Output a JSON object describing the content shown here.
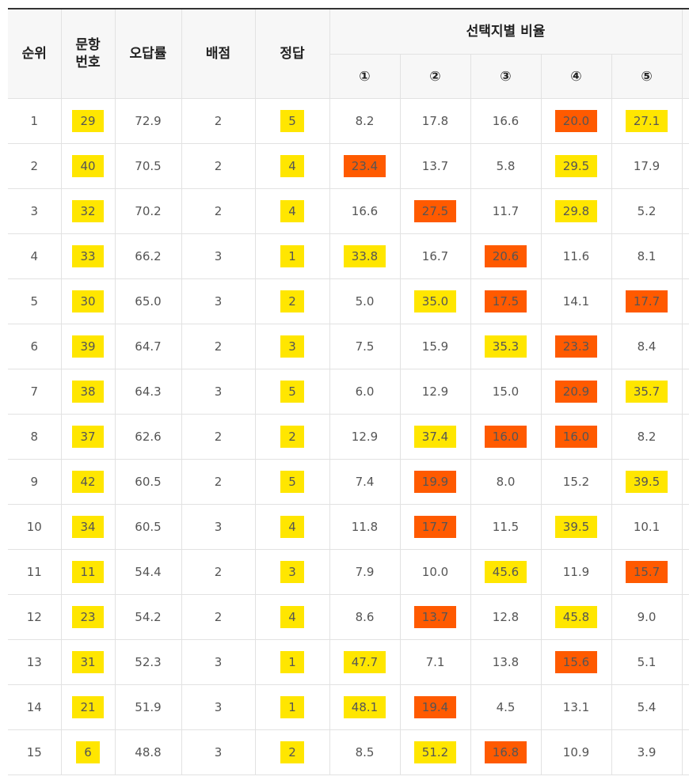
{
  "headers": {
    "rank": "순위",
    "qnum": "문항\n번호",
    "wrong_rate": "오답률",
    "points": "배점",
    "answer": "정답",
    "choice_ratio": "선택지별 비율",
    "choices": [
      "①",
      "②",
      "③",
      "④",
      "⑤"
    ]
  },
  "rows": [
    {
      "rank": "1",
      "qnum": "29",
      "wrong": "72.9",
      "points": "2",
      "answer": "5",
      "c": [
        "8.2",
        "17.8",
        "16.6",
        "20.0",
        "27.1"
      ],
      "orange": 3
    },
    {
      "rank": "2",
      "qnum": "40",
      "wrong": "70.5",
      "points": "2",
      "answer": "4",
      "c": [
        "23.4",
        "13.7",
        "5.8",
        "29.5",
        "17.9"
      ],
      "orange": 0
    },
    {
      "rank": "3",
      "qnum": "32",
      "wrong": "70.2",
      "points": "2",
      "answer": "4",
      "c": [
        "16.6",
        "27.5",
        "11.7",
        "29.8",
        "5.2"
      ],
      "orange": 1
    },
    {
      "rank": "4",
      "qnum": "33",
      "wrong": "66.2",
      "points": "3",
      "answer": "1",
      "c": [
        "33.8",
        "16.7",
        "20.6",
        "11.6",
        "8.1"
      ],
      "orange": 2
    },
    {
      "rank": "5",
      "qnum": "30",
      "wrong": "65.0",
      "points": "3",
      "answer": "2",
      "c": [
        "5.0",
        "35.0",
        "17.5",
        "14.1",
        "17.7"
      ],
      "orange": [
        2,
        4
      ]
    },
    {
      "rank": "6",
      "qnum": "39",
      "wrong": "64.7",
      "points": "2",
      "answer": "3",
      "c": [
        "7.5",
        "15.9",
        "35.3",
        "23.3",
        "8.4"
      ],
      "orange": 3
    },
    {
      "rank": "7",
      "qnum": "38",
      "wrong": "64.3",
      "points": "3",
      "answer": "5",
      "c": [
        "6.0",
        "12.9",
        "15.0",
        "20.9",
        "35.7"
      ],
      "orange": 3
    },
    {
      "rank": "8",
      "qnum": "37",
      "wrong": "62.6",
      "points": "2",
      "answer": "2",
      "c": [
        "12.9",
        "37.4",
        "16.0",
        "16.0",
        "8.2"
      ],
      "orange": [
        2,
        3
      ]
    },
    {
      "rank": "9",
      "qnum": "42",
      "wrong": "60.5",
      "points": "2",
      "answer": "5",
      "c": [
        "7.4",
        "19.9",
        "8.0",
        "15.2",
        "39.5"
      ],
      "orange": 1
    },
    {
      "rank": "10",
      "qnum": "34",
      "wrong": "60.5",
      "points": "3",
      "answer": "4",
      "c": [
        "11.8",
        "17.7",
        "11.5",
        "39.5",
        "10.1"
      ],
      "orange": 1
    },
    {
      "rank": "11",
      "qnum": "11",
      "wrong": "54.4",
      "points": "2",
      "answer": "3",
      "c": [
        "7.9",
        "10.0",
        "45.6",
        "11.9",
        "15.7"
      ],
      "orange": 4
    },
    {
      "rank": "12",
      "qnum": "23",
      "wrong": "54.2",
      "points": "2",
      "answer": "4",
      "c": [
        "8.6",
        "13.7",
        "12.8",
        "45.8",
        "9.0"
      ],
      "orange": 1
    },
    {
      "rank": "13",
      "qnum": "31",
      "wrong": "52.3",
      "points": "3",
      "answer": "1",
      "c": [
        "47.7",
        "7.1",
        "13.8",
        "15.6",
        "5.1"
      ],
      "orange": 3
    },
    {
      "rank": "14",
      "qnum": "21",
      "wrong": "51.9",
      "points": "3",
      "answer": "1",
      "c": [
        "48.1",
        "19.4",
        "4.5",
        "13.1",
        "5.4"
      ],
      "orange": 1
    },
    {
      "rank": "15",
      "qnum": "6",
      "wrong": "48.8",
      "points": "3",
      "answer": "2",
      "c": [
        "8.5",
        "51.2",
        "16.8",
        "10.9",
        "3.9"
      ],
      "orange": 2
    }
  ],
  "colors": {
    "correct_highlight": "#ffe600",
    "wrong_highlight": "#ff5a00"
  }
}
